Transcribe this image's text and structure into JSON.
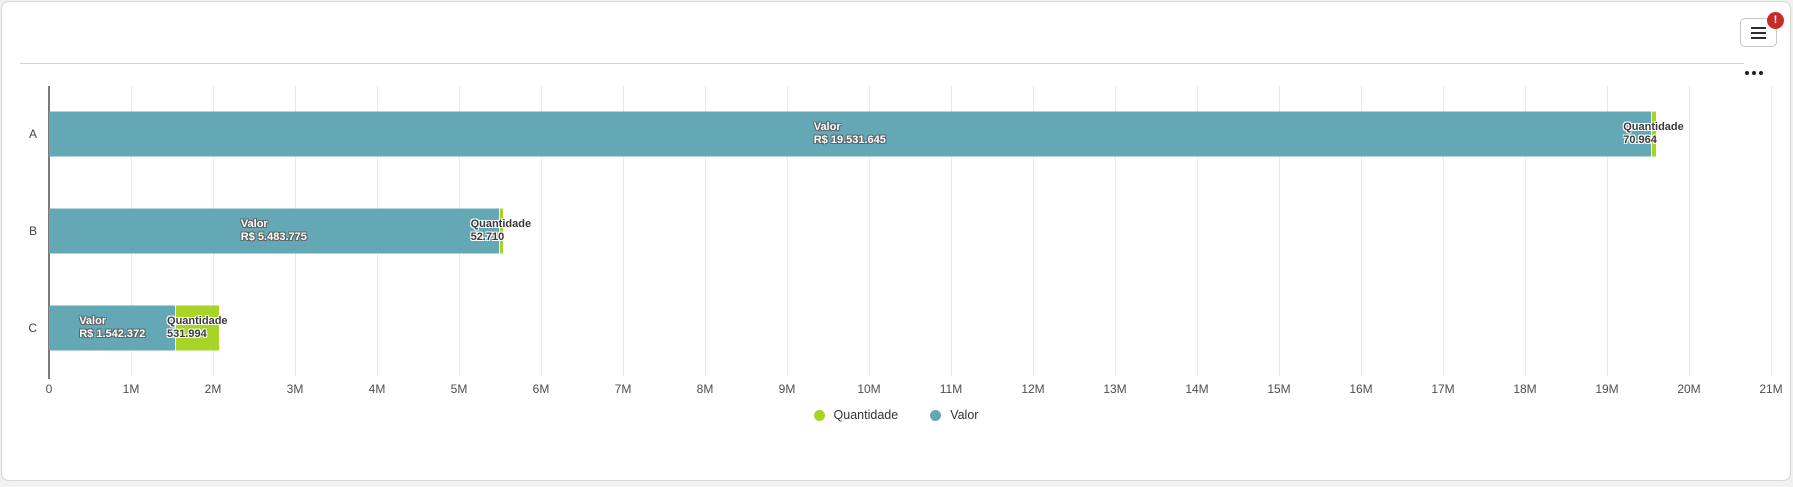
{
  "header": {
    "menu_button": {
      "badge": "!"
    }
  },
  "icons": {
    "menu": "hamburger-icon",
    "alert": "!",
    "more_options": "ellipsis-icon"
  },
  "colors": {
    "valor": "#64a8b5",
    "quantidade": "#a6d527",
    "badge": "#c62e25",
    "card_border": "#d8d8d8",
    "gridline": "#e9e9e9",
    "axis": "#7a7a7a"
  },
  "chart_data": {
    "type": "bar",
    "orientation": "horizontal",
    "stacked": true,
    "title": "",
    "xlabel": "",
    "ylabel": "",
    "categories": [
      "A",
      "B",
      "C"
    ],
    "series": [
      {
        "name": "Valor",
        "color": "#64a8b5",
        "label_theme": "light",
        "values": [
          19531645,
          5483775,
          1542372
        ],
        "labels": [
          "R$ 19.531.645",
          "R$ 5.483.775",
          "R$ 1.542.372"
        ]
      },
      {
        "name": "Quantidade",
        "color": "#a6d527",
        "label_theme": "dark",
        "values": [
          70964,
          52710,
          531994
        ],
        "labels": [
          "70.964",
          "52.710",
          "531.994"
        ]
      }
    ],
    "xlim": [
      0,
      21000000
    ],
    "x_ticks": [
      "0",
      "1M",
      "2M",
      "3M",
      "4M",
      "5M",
      "6M",
      "7M",
      "8M",
      "9M",
      "10M",
      "11M",
      "12M",
      "13M",
      "14M",
      "15M",
      "16M",
      "17M",
      "18M",
      "19M",
      "20M",
      "21M"
    ],
    "grid": true,
    "legend": {
      "position": "bottom",
      "items": [
        {
          "label": "Quantidade",
          "color": "#a6d527"
        },
        {
          "label": "Valor",
          "color": "#64a8b5"
        }
      ]
    }
  }
}
